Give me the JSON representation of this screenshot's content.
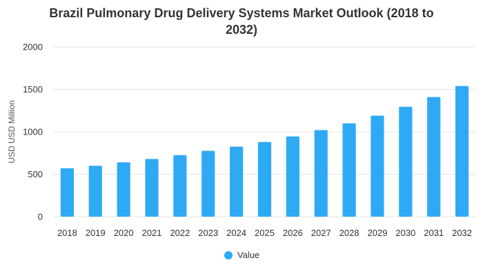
{
  "chart_data": {
    "type": "bar",
    "title_lines": [
      "Brazil Pulmonary Drug Delivery Systems Market Outlook (2018 to",
      "2032)"
    ],
    "xlabel": "",
    "ylabel": "USD USD Million",
    "ylim": [
      0,
      2000
    ],
    "yticks": [
      "0",
      "500",
      "1000",
      "1500",
      "2000"
    ],
    "ytick_values": [
      0,
      500,
      1000,
      1500,
      2000
    ],
    "grid": true,
    "legend_position": "bottom-center",
    "categories": [
      "2018",
      "2019",
      "2020",
      "2021",
      "2022",
      "2023",
      "2024",
      "2025",
      "2026",
      "2027",
      "2028",
      "2029",
      "2030",
      "2031",
      "2032"
    ],
    "series": [
      {
        "name": "Value",
        "color": "#2eaaf5",
        "values": [
          570,
          600,
          640,
          680,
          725,
          775,
          825,
          880,
          945,
          1020,
          1100,
          1190,
          1295,
          1410,
          1540
        ]
      }
    ]
  }
}
